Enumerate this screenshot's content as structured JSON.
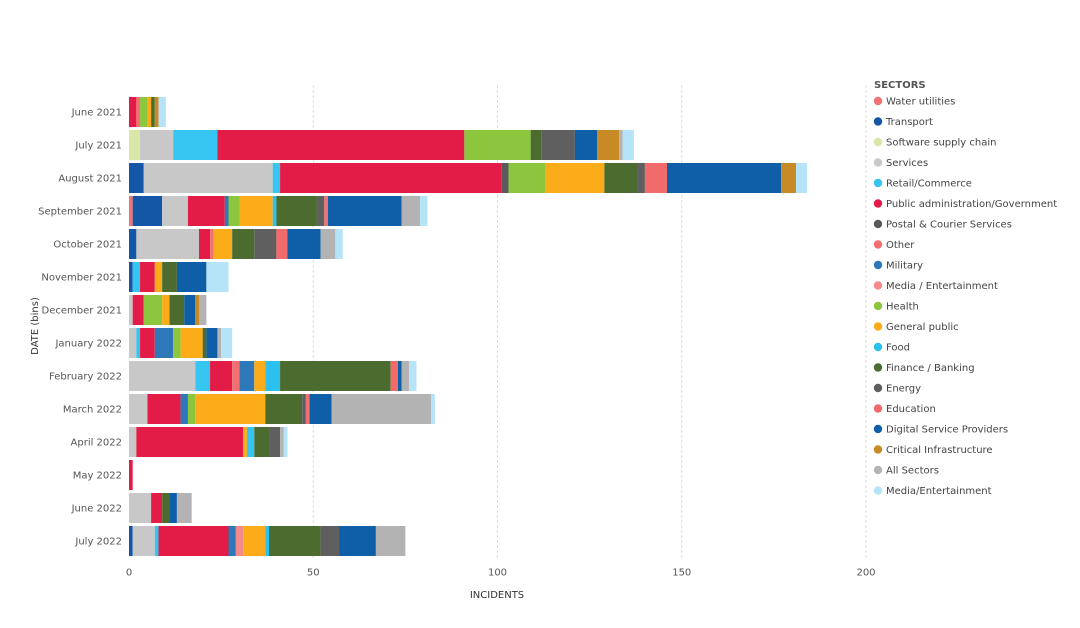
{
  "chart_data": {
    "type": "bar",
    "orientation": "horizontal",
    "stacked": true,
    "xlabel": "INCIDENTS",
    "ylabel": "DATE (bins)",
    "xlim": [
      0,
      200
    ],
    "xticks": [
      0,
      50,
      100,
      150,
      200
    ],
    "grid": true,
    "legend_title": "SECTORS",
    "legend_position": "right",
    "categories": [
      "June 2021",
      "July 2021",
      "August 2021",
      "September 2021",
      "October 2021",
      "November 2021",
      "December 2021",
      "January 2022",
      "February 2022",
      "March 2022",
      "April 2022",
      "May 2022",
      "June 2022",
      "July 2022"
    ],
    "series": [
      {
        "name": "Water utilities",
        "color": "#f07272"
      },
      {
        "name": "Transport",
        "color": "#1357a6"
      },
      {
        "name": "Software supply chain",
        "color": "#d9e8a8"
      },
      {
        "name": "Services",
        "color": "#c8c8c8"
      },
      {
        "name": "Retail/Commerce",
        "color": "#36c5f0"
      },
      {
        "name": "Public administration/Government",
        "color": "#e31c47"
      },
      {
        "name": "Postal & Courier Services",
        "color": "#5a5a5a"
      },
      {
        "name": "Other",
        "color": "#f27070"
      },
      {
        "name": "Military",
        "color": "#2e78b9"
      },
      {
        "name": "Media / Entertainment",
        "color": "#f58a8a"
      },
      {
        "name": "Health",
        "color": "#8cc63f"
      },
      {
        "name": "General public",
        "color": "#fbac18"
      },
      {
        "name": "Food",
        "color": "#2bc0ee"
      },
      {
        "name": "Finance / Banking",
        "color": "#4c6b2f"
      },
      {
        "name": "Energy",
        "color": "#5f5f5f"
      },
      {
        "name": "Education",
        "color": "#f26b6b"
      },
      {
        "name": "Digital Service Providers",
        "color": "#0e5ea8"
      },
      {
        "name": "Critical Infrastructure",
        "color": "#c88a26"
      },
      {
        "name": "All Sectors",
        "color": "#b3b3b3"
      },
      {
        "name": "Media/Entertainment",
        "color": "#b5e3f8"
      }
    ],
    "stacks": [
      [
        {
          "s": "Public administration/Government",
          "v": 2
        },
        {
          "s": "Other",
          "v": 1
        },
        {
          "s": "Health",
          "v": 2
        },
        {
          "s": "General public",
          "v": 1
        },
        {
          "s": "Finance / Banking",
          "v": 1
        },
        {
          "s": "Critical Infrastructure",
          "v": 1
        },
        {
          "s": "Media/Entertainment",
          "v": 2
        }
      ],
      [
        {
          "s": "Software supply chain",
          "v": 3
        },
        {
          "s": "Services",
          "v": 9
        },
        {
          "s": "Retail/Commerce",
          "v": 12
        },
        {
          "s": "Public administration/Government",
          "v": 67
        },
        {
          "s": "Health",
          "v": 18
        },
        {
          "s": "Finance / Banking",
          "v": 3
        },
        {
          "s": "Energy",
          "v": 9
        },
        {
          "s": "Digital Service Providers",
          "v": 6
        },
        {
          "s": "Critical Infrastructure",
          "v": 6
        },
        {
          "s": "All Sectors",
          "v": 1
        },
        {
          "s": "Media/Entertainment",
          "v": 3
        }
      ],
      [
        {
          "s": "Transport",
          "v": 4
        },
        {
          "s": "Services",
          "v": 35
        },
        {
          "s": "Retail/Commerce",
          "v": 2
        },
        {
          "s": "Public administration/Government",
          "v": 60
        },
        {
          "s": "Postal & Courier Services",
          "v": 2
        },
        {
          "s": "Health",
          "v": 10
        },
        {
          "s": "General public",
          "v": 16
        },
        {
          "s": "Finance / Banking",
          "v": 9
        },
        {
          "s": "Energy",
          "v": 2
        },
        {
          "s": "Education",
          "v": 6
        },
        {
          "s": "Digital Service Providers",
          "v": 31
        },
        {
          "s": "Critical Infrastructure",
          "v": 4
        },
        {
          "s": "Media/Entertainment",
          "v": 3
        }
      ],
      [
        {
          "s": "Water utilities",
          "v": 1
        },
        {
          "s": "Transport",
          "v": 8
        },
        {
          "s": "Services",
          "v": 7
        },
        {
          "s": "Public administration/Government",
          "v": 10
        },
        {
          "s": "Military",
          "v": 1
        },
        {
          "s": "Health",
          "v": 3
        },
        {
          "s": "General public",
          "v": 9
        },
        {
          "s": "Food",
          "v": 1
        },
        {
          "s": "Finance / Banking",
          "v": 11
        },
        {
          "s": "Energy",
          "v": 2
        },
        {
          "s": "Other",
          "v": 1
        },
        {
          "s": "Digital Service Providers",
          "v": 20
        },
        {
          "s": "All Sectors",
          "v": 5
        },
        {
          "s": "Media/Entertainment",
          "v": 2
        }
      ],
      [
        {
          "s": "Transport",
          "v": 2
        },
        {
          "s": "Services",
          "v": 17
        },
        {
          "s": "Public administration/Government",
          "v": 3
        },
        {
          "s": "Water utilities",
          "v": 1
        },
        {
          "s": "General public",
          "v": 5
        },
        {
          "s": "Finance / Banking",
          "v": 6
        },
        {
          "s": "Energy",
          "v": 6
        },
        {
          "s": "Education",
          "v": 3
        },
        {
          "s": "Digital Service Providers",
          "v": 9
        },
        {
          "s": "All Sectors",
          "v": 4
        },
        {
          "s": "Media/Entertainment",
          "v": 2
        }
      ],
      [
        {
          "s": "Transport",
          "v": 1
        },
        {
          "s": "Retail/Commerce",
          "v": 2
        },
        {
          "s": "Public administration/Government",
          "v": 4
        },
        {
          "s": "General public",
          "v": 2
        },
        {
          "s": "Finance / Banking",
          "v": 4
        },
        {
          "s": "Digital Service Providers",
          "v": 8
        },
        {
          "s": "Media/Entertainment",
          "v": 6
        }
      ],
      [
        {
          "s": "Services",
          "v": 1
        },
        {
          "s": "Public administration/Government",
          "v": 3
        },
        {
          "s": "Health",
          "v": 5
        },
        {
          "s": "General public",
          "v": 2
        },
        {
          "s": "Finance / Banking",
          "v": 4
        },
        {
          "s": "Digital Service Providers",
          "v": 3
        },
        {
          "s": "Critical Infrastructure",
          "v": 1
        },
        {
          "s": "All Sectors",
          "v": 2
        }
      ],
      [
        {
          "s": "Services",
          "v": 2
        },
        {
          "s": "Retail/Commerce",
          "v": 1
        },
        {
          "s": "Public administration/Government",
          "v": 4
        },
        {
          "s": "Military",
          "v": 5
        },
        {
          "s": "Health",
          "v": 2
        },
        {
          "s": "General public",
          "v": 6
        },
        {
          "s": "Finance / Banking",
          "v": 1
        },
        {
          "s": "Digital Service Providers",
          "v": 3
        },
        {
          "s": "All Sectors",
          "v": 1
        },
        {
          "s": "Media/Entertainment",
          "v": 3
        }
      ],
      [
        {
          "s": "Services",
          "v": 18
        },
        {
          "s": "Retail/Commerce",
          "v": 4
        },
        {
          "s": "Public administration/Government",
          "v": 6
        },
        {
          "s": "Other",
          "v": 2
        },
        {
          "s": "Military",
          "v": 4
        },
        {
          "s": "General public",
          "v": 3
        },
        {
          "s": "Food",
          "v": 4
        },
        {
          "s": "Finance / Banking",
          "v": 30
        },
        {
          "s": "Education",
          "v": 2
        },
        {
          "s": "Digital Service Providers",
          "v": 1
        },
        {
          "s": "All Sectors",
          "v": 2
        },
        {
          "s": "Media/Entertainment",
          "v": 2
        }
      ],
      [
        {
          "s": "Services",
          "v": 5
        },
        {
          "s": "Public administration/Government",
          "v": 9
        },
        {
          "s": "Military",
          "v": 2
        },
        {
          "s": "Health",
          "v": 2
        },
        {
          "s": "General public",
          "v": 19
        },
        {
          "s": "Finance / Banking",
          "v": 10
        },
        {
          "s": "Energy",
          "v": 1
        },
        {
          "s": "Other",
          "v": 1
        },
        {
          "s": "Digital Service Providers",
          "v": 6
        },
        {
          "s": "All Sectors",
          "v": 27
        },
        {
          "s": "Media/Entertainment",
          "v": 1
        }
      ],
      [
        {
          "s": "Services",
          "v": 2
        },
        {
          "s": "Public administration/Government",
          "v": 29
        },
        {
          "s": "General public",
          "v": 1
        },
        {
          "s": "Retail/Commerce",
          "v": 2
        },
        {
          "s": "Finance / Banking",
          "v": 4
        },
        {
          "s": "Energy",
          "v": 3
        },
        {
          "s": "All Sectors",
          "v": 1
        },
        {
          "s": "Media/Entertainment",
          "v": 1
        }
      ],
      [
        {
          "s": "Public administration/Government",
          "v": 1
        }
      ],
      [
        {
          "s": "Services",
          "v": 6
        },
        {
          "s": "Public administration/Government",
          "v": 3
        },
        {
          "s": "Finance / Banking",
          "v": 2
        },
        {
          "s": "Digital Service Providers",
          "v": 2
        },
        {
          "s": "All Sectors",
          "v": 4
        }
      ],
      [
        {
          "s": "Transport",
          "v": 1
        },
        {
          "s": "Services",
          "v": 6
        },
        {
          "s": "Retail/Commerce",
          "v": 1
        },
        {
          "s": "Public administration/Government",
          "v": 19
        },
        {
          "s": "Military",
          "v": 2
        },
        {
          "s": "Media / Entertainment",
          "v": 2
        },
        {
          "s": "General public",
          "v": 6
        },
        {
          "s": "Food",
          "v": 1
        },
        {
          "s": "Finance / Banking",
          "v": 14
        },
        {
          "s": "Energy",
          "v": 5
        },
        {
          "s": "Digital Service Providers",
          "v": 10
        },
        {
          "s": "All Sectors",
          "v": 8
        }
      ]
    ]
  }
}
